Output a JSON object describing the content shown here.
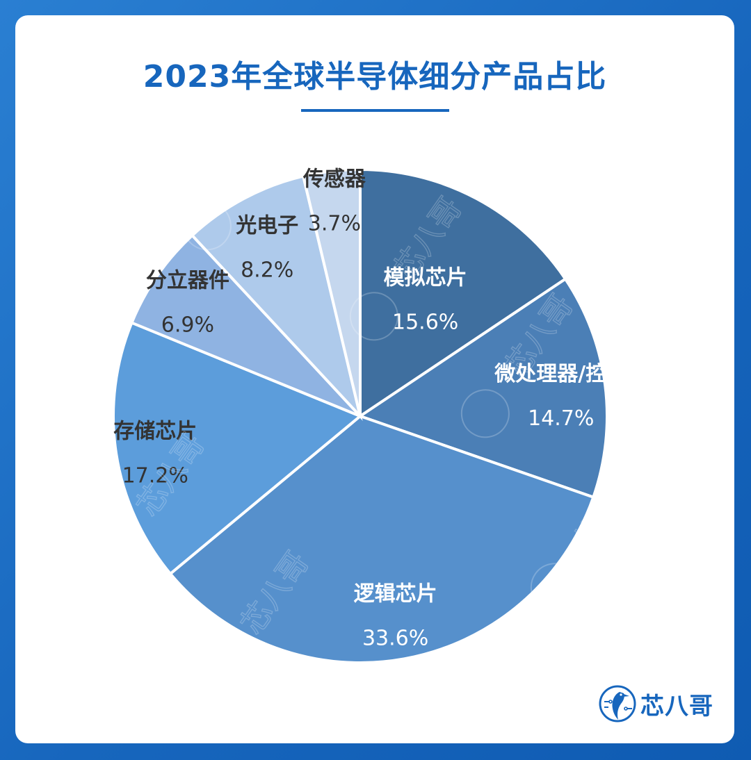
{
  "chart_data": {
    "type": "pie",
    "title": "2023年全球半导体细分产品占比",
    "unit": "%",
    "slices": [
      {
        "label": "模拟芯片",
        "value": 15.6,
        "value_label": "15.6%",
        "color": "#3f6f9f",
        "text_color": "#ffffff"
      },
      {
        "label": "微处理器/控制",
        "value": 14.7,
        "value_label": "14.7%",
        "color": "#4b7fb6",
        "text_color": "#ffffff"
      },
      {
        "label": "逻辑芯片",
        "value": 33.6,
        "value_label": "33.6%",
        "color": "#5690cc",
        "text_color": "#ffffff"
      },
      {
        "label": "存储芯片",
        "value": 17.2,
        "value_label": "17.2%",
        "color": "#5c9ddb",
        "text_color": "#333333"
      },
      {
        "label": "分立器件",
        "value": 6.9,
        "value_label": "6.9%",
        "color": "#8fb3e2",
        "text_color": "#333333"
      },
      {
        "label": "光电子",
        "value": 8.2,
        "value_label": "8.2%",
        "color": "#aecaeb",
        "text_color": "#333333"
      },
      {
        "label": "传感器",
        "value": 3.7,
        "value_label": "3.7%",
        "color": "#c5d7ee",
        "text_color": "#333333"
      }
    ]
  },
  "brand": {
    "name": "芯八哥",
    "watermark": "芯八哥",
    "logo_icon": "kingfisher-bird-icon"
  },
  "colors": {
    "accent": "#1766bd",
    "background": "#1a6fc4",
    "card": "#ffffff"
  }
}
